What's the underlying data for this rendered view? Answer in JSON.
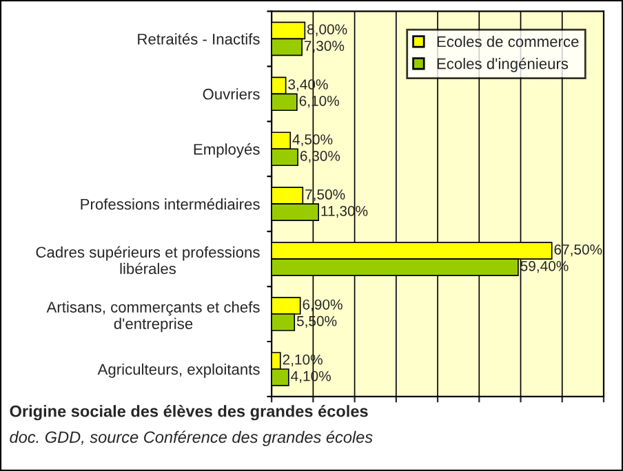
{
  "chart_data": {
    "type": "bar",
    "orientation": "horizontal",
    "title": "Origine sociale des élèves des grandes écoles",
    "annotations": [
      "doc. GDD, source Conférence des grandes écoles"
    ],
    "categories": [
      "Retraités - Inactifs",
      "Ouvriers",
      "Employés",
      "Professions intermédiaires",
      "Cadres supérieurs et professions libérales",
      "Artisans, commerçants et chefs d'entreprise",
      "Agriculteurs, exploitants"
    ],
    "series": [
      {
        "name": "Ecoles de commerce",
        "color": "#ffff00",
        "values": [
          8.0,
          3.4,
          4.5,
          7.5,
          67.5,
          6.9,
          2.1
        ],
        "value_labels": [
          "8,00%",
          "3,40%",
          "4,50%",
          "7,50%",
          "67,50%",
          "6,90%",
          "2,10%"
        ]
      },
      {
        "name": "Ecoles d'ingénieurs",
        "color": "#99cc00",
        "values": [
          7.3,
          6.1,
          6.3,
          11.3,
          59.4,
          5.5,
          4.1
        ],
        "value_labels": [
          "7,30%",
          "6,10%",
          "6,30%",
          "11,30%",
          "59,40%",
          "5,50%",
          "4,10%"
        ]
      }
    ],
    "xlim": [
      0,
      80
    ],
    "xticks": [
      {
        "value": 0,
        "label": null
      },
      {
        "value": 10,
        "label": null
      },
      {
        "value": 20,
        "label": null
      },
      {
        "value": 30,
        "label": null
      },
      {
        "value": 40,
        "label": null
      },
      {
        "value": 50,
        "label": null
      },
      {
        "value": 60,
        "label": null
      },
      {
        "value": 70,
        "label": null
      },
      {
        "value": 80,
        "label": null
      }
    ],
    "grid": "x",
    "legend": "top right"
  }
}
